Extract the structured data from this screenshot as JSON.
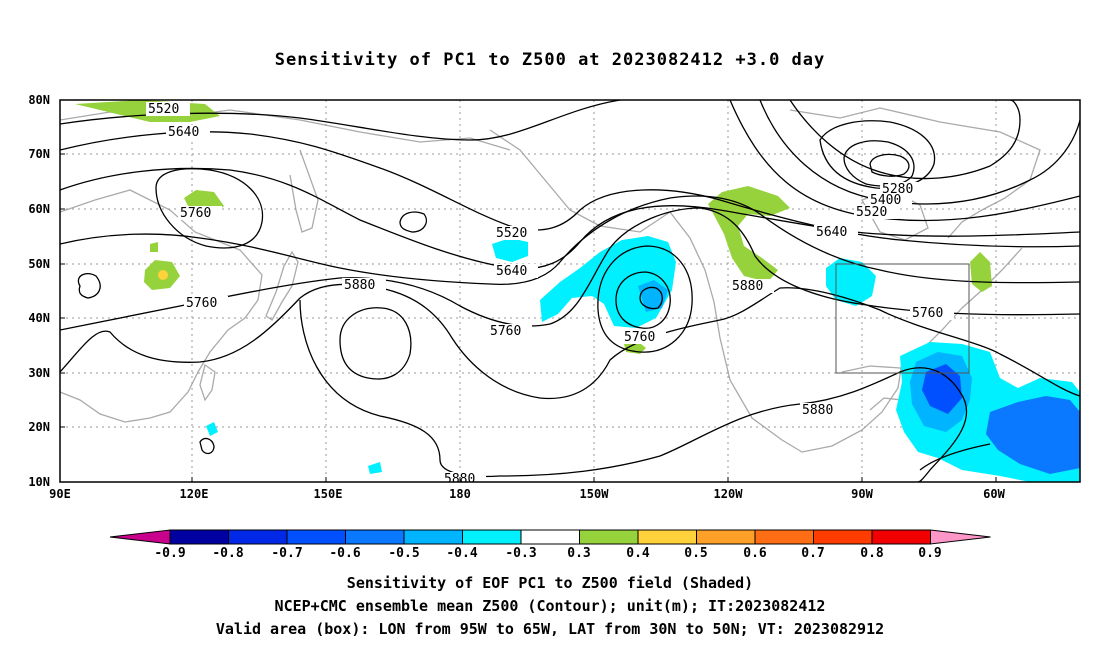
{
  "title": "Sensitivity of PC1 to Z500 at 2023082412 +3.0 day",
  "map": {
    "lon_labels": [
      "90E",
      "120E",
      "150E",
      "180",
      "150W",
      "120W",
      "90W",
      "60W"
    ],
    "lat_labels": [
      "80N",
      "70N",
      "60N",
      "50N",
      "40N",
      "30N",
      "20N",
      "10N"
    ],
    "contour_labels": [
      "5520",
      "5640",
      "5760",
      "5520",
      "5640",
      "5760",
      "5880",
      "5760",
      "5760",
      "5880",
      "5280",
      "5400",
      "5520",
      "5640",
      "5760",
      "5880",
      "5880"
    ],
    "valid_box": {
      "lon_from": "95W",
      "lon_to": "65W",
      "lat_from": "30N",
      "lat_to": "50N"
    }
  },
  "legend": {
    "labels": [
      "-0.9",
      "-0.8",
      "-0.7",
      "-0.6",
      "-0.5",
      "-0.4",
      "-0.3",
      "0.3",
      "0.4",
      "0.5",
      "0.6",
      "0.7",
      "0.8",
      "0.9"
    ],
    "colors": [
      "#c8008c",
      "#0000a0",
      "#0028e6",
      "#0050ff",
      "#0a78ff",
      "#00b4ff",
      "#00f0ff",
      "#ffffff",
      "#96d23c",
      "#ffd23c",
      "#ffa028",
      "#ff6e14",
      "#ff3c00",
      "#f00000",
      "#ff96c8"
    ]
  },
  "captions": {
    "line1": "Sensitivity of EOF PC1 to Z500 field (Shaded)",
    "line2": "NCEP+CMC ensemble mean Z500 (Contour); unit(m); IT:2023082412",
    "line3": "Valid area (box): LON from 95W to 65W, LAT from 30N to 50N; VT: 2023082912"
  }
}
